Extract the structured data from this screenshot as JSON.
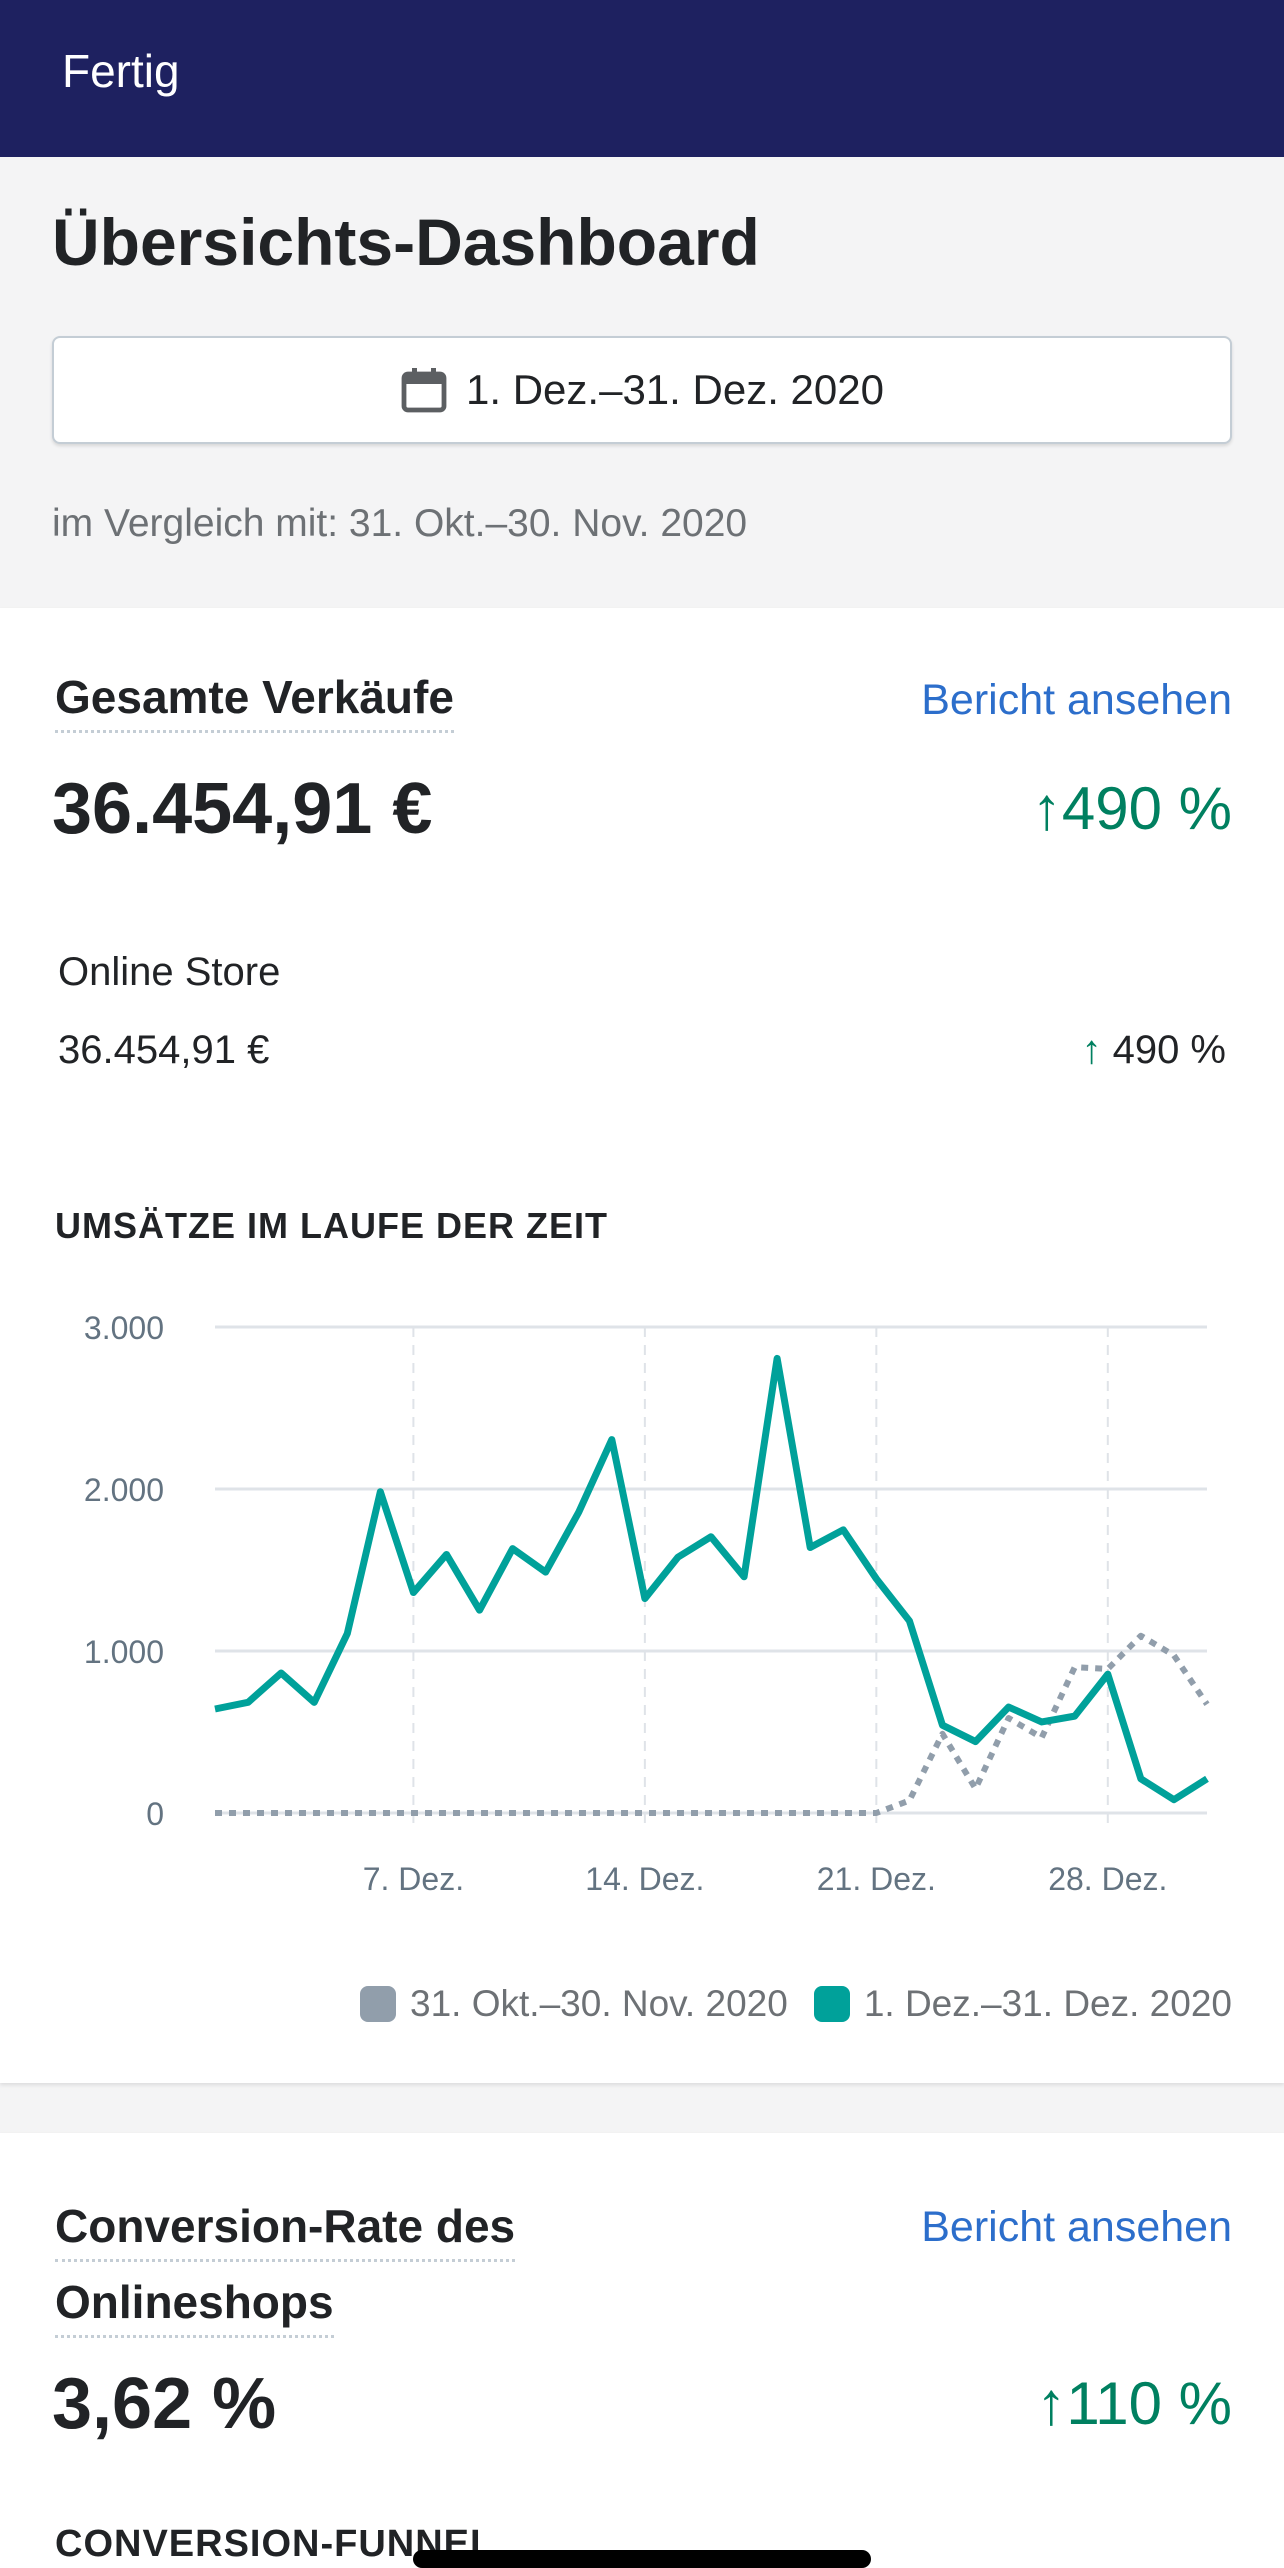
{
  "topbar": {
    "done_label": "Fertig"
  },
  "header": {
    "title": "Übersichts-Dashboard",
    "date_range": "1. Dez.–31. Dez. 2020",
    "calendar_icon": "calendar-icon",
    "compare_text": "im Vergleich mit: 31. Okt.–30. Nov. 2020"
  },
  "sales": {
    "title": "Gesamte Verkäufe",
    "report_link": "Bericht ansehen",
    "total": "36.454,91 €",
    "delta": "490 %",
    "channel": "Online Store",
    "channel_total": "36.454,91 €",
    "channel_delta": "490 %",
    "chart_title": "UMSÄTZE IM LAUFE DER ZEIT"
  },
  "chart_data": {
    "type": "line",
    "title": "UMSÄTZE IM LAUFE DER ZEIT",
    "x_ticks": [
      "7. Dez.",
      "14. Dez.",
      "21. Dez.",
      "28. Dez."
    ],
    "y_ticks": [
      "0",
      "1.000",
      "2.000",
      "3.000"
    ],
    "ylim": [
      0,
      3000
    ],
    "x": [
      "1.12",
      "2.12",
      "3.12",
      "4.12",
      "5.12",
      "6.12",
      "7.12",
      "8.12",
      "9.12",
      "10.12",
      "11.12",
      "12.12",
      "13.12",
      "14.12",
      "15.12",
      "16.12",
      "17.12",
      "18.12",
      "19.12",
      "20.12",
      "21.12",
      "22.12",
      "23.12",
      "24.12",
      "25.12",
      "26.12",
      "27.12",
      "28.12",
      "29.12",
      "30.12",
      "31.12"
    ],
    "grid": true,
    "legend": "bottom-right",
    "series": [
      {
        "name": "31. Okt.–30. Nov. 2020",
        "color": "#8c9196",
        "style": "dotted",
        "values": [
          0,
          0,
          0,
          0,
          0,
          0,
          0,
          0,
          0,
          0,
          0,
          0,
          0,
          0,
          0,
          0,
          0,
          0,
          0,
          0,
          0,
          77,
          489,
          150,
          586,
          465,
          900,
          889,
          1094,
          973,
          671
        ]
      },
      {
        "name": "1. Dez.–31. Dez. 2020",
        "color": "#00a19a",
        "style": "solid",
        "values": [
          642,
          683,
          864,
          683,
          1107,
          1983,
          1361,
          1596,
          1252,
          1632,
          1487,
          1857,
          2305,
          1324,
          1579,
          1705,
          1458,
          2806,
          1639,
          1748,
          1446,
          1186,
          542,
          441,
          654,
          562,
          598,
          857,
          211,
          82,
          211
        ]
      }
    ]
  },
  "conversion": {
    "title_line1": "Conversion-Rate des",
    "title_line2": "Onlineshops",
    "report_link": "Bericht ansehen",
    "value": "3,62 %",
    "delta": "110 %",
    "funnel_title": "CONVERSION-FUNNEL"
  }
}
